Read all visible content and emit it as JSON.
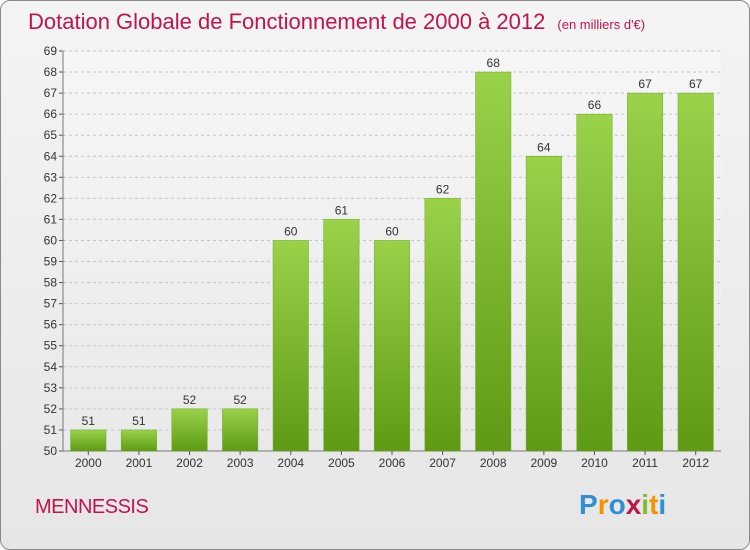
{
  "chart_data": {
    "type": "bar",
    "title": "Dotation Globale de Fonctionnement de 2000 à 2012",
    "unit": "(en milliers d'€)",
    "categories": [
      "2000",
      "2001",
      "2002",
      "2003",
      "2004",
      "2005",
      "2006",
      "2007",
      "2008",
      "2009",
      "2010",
      "2011",
      "2012"
    ],
    "values": [
      51,
      51,
      52,
      52,
      60,
      61,
      60,
      62,
      68,
      64,
      66,
      67,
      67
    ],
    "ylim": [
      50,
      69
    ],
    "yticks": [
      "50",
      "51",
      "52",
      "53",
      "54",
      "55",
      "56",
      "57",
      "58",
      "59",
      "60",
      "61",
      "62",
      "63",
      "64",
      "65",
      "66",
      "67",
      "68",
      "69"
    ],
    "grid": true,
    "bar_color": "#7cbf2c"
  },
  "footer": {
    "commune": "MENNESSIS",
    "logo_letters": [
      "P",
      "r",
      "o",
      "x",
      "i",
      "t",
      "i"
    ],
    "logo_colors": [
      "#2d8fd5",
      "#f29400",
      "#2d8fd5",
      "#c0144d",
      "#7cbf2c",
      "#f29400",
      "#2d8fd5"
    ]
  }
}
